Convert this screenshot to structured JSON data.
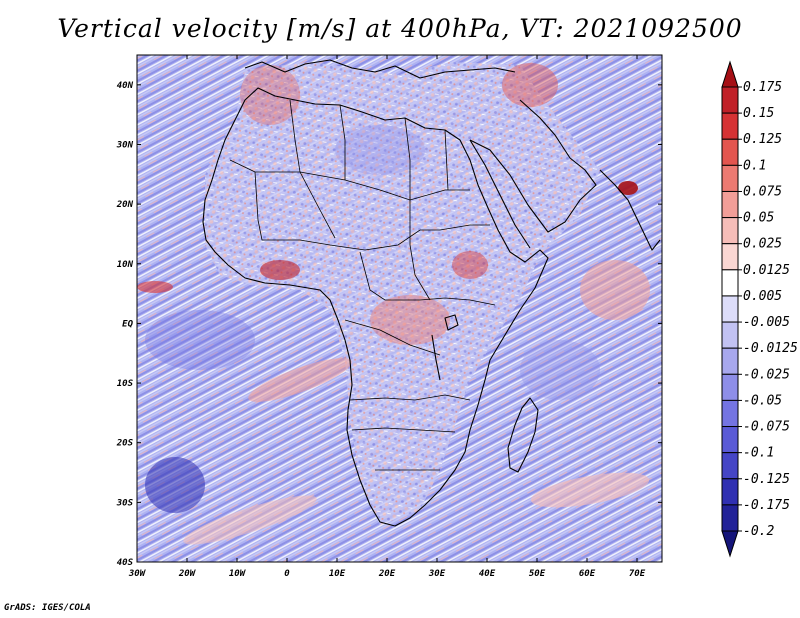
{
  "title": "Vertical velocity [m/s] at 400hPa, VT: 2021092500",
  "credit": "GrADS: IGES/COLA",
  "map": {
    "lon_range": [
      -30,
      75
    ],
    "lat_range": [
      -40,
      45
    ],
    "lon_ticks": [
      {
        "value": -30,
        "label": "30W"
      },
      {
        "value": -20,
        "label": "20W"
      },
      {
        "value": -10,
        "label": "10W"
      },
      {
        "value": 0,
        "label": "0"
      },
      {
        "value": 10,
        "label": "10E"
      },
      {
        "value": 20,
        "label": "20E"
      },
      {
        "value": 30,
        "label": "30E"
      },
      {
        "value": 40,
        "label": "40E"
      },
      {
        "value": 50,
        "label": "50E"
      },
      {
        "value": 60,
        "label": "60E"
      },
      {
        "value": 70,
        "label": "70E"
      }
    ],
    "lat_ticks": [
      {
        "value": 40,
        "label": "40N"
      },
      {
        "value": 30,
        "label": "30N"
      },
      {
        "value": 20,
        "label": "20N"
      },
      {
        "value": 10,
        "label": "10N"
      },
      {
        "value": 0,
        "label": "EQ"
      },
      {
        "value": -10,
        "label": "10S"
      },
      {
        "value": -20,
        "label": "20S"
      },
      {
        "value": -30,
        "label": "30S"
      },
      {
        "value": -40,
        "label": "40S"
      }
    ]
  },
  "colorbar": {
    "levels": [
      "0.175",
      "0.15",
      "0.125",
      "0.1",
      "0.075",
      "0.05",
      "0.025",
      "0.0125",
      "0.005",
      "-0.005",
      "-0.0125",
      "-0.025",
      "-0.05",
      "-0.075",
      "-0.1",
      "-0.125",
      "-0.175",
      "-0.2"
    ],
    "colors": [
      "#a50f15",
      "#c02028",
      "#d63234",
      "#e3554f",
      "#ec7a72",
      "#f29e98",
      "#f6bdb8",
      "#fad7d3",
      "#ffffff",
      "#dcdcf9",
      "#c2c2f3",
      "#a8a8ee",
      "#8e8ee8",
      "#7474e2",
      "#5a5ad6",
      "#4545c6",
      "#3030b2",
      "#222298",
      "#15157a"
    ]
  }
}
